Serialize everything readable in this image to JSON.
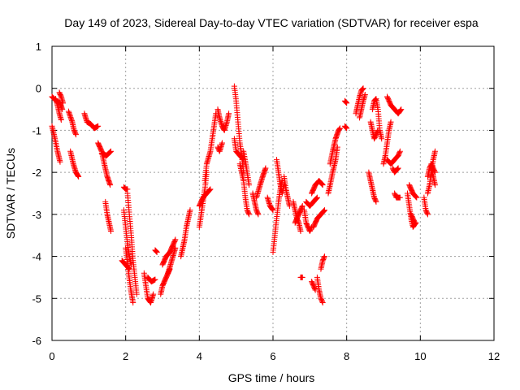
{
  "chart_data": {
    "type": "scatter",
    "title": "Day 149 of 2023, Sidereal Day-to-day VTEC variation (SDTVAR) for receiver espa",
    "xlabel": "GPS time / hours",
    "ylabel": "SDTVAR / TECUs",
    "xlim": [
      0,
      12
    ],
    "ylim": [
      -6,
      1
    ],
    "xticks": [
      0,
      2,
      4,
      6,
      8,
      10,
      12
    ],
    "yticks": [
      1,
      0,
      -1,
      -2,
      -3,
      -4,
      -5,
      -6
    ],
    "grid": true,
    "marker": "+",
    "color": "#ff0000",
    "segments": [
      [
        [
          0.0,
          -0.2
        ],
        [
          0.12,
          -0.3
        ],
        [
          0.22,
          -0.35
        ],
        [
          0.28,
          -0.5
        ]
      ],
      [
        [
          0.0,
          -0.9
        ],
        [
          0.08,
          -1.2
        ],
        [
          0.15,
          -1.5
        ],
        [
          0.22,
          -1.75
        ]
      ],
      [
        [
          0.1,
          -0.25
        ],
        [
          0.15,
          -0.4
        ],
        [
          0.2,
          -0.6
        ],
        [
          0.25,
          -0.75
        ]
      ],
      [
        [
          0.2,
          -0.1
        ],
        [
          0.25,
          -0.2
        ],
        [
          0.3,
          -0.35
        ]
      ],
      [
        [
          0.45,
          -0.55
        ],
        [
          0.55,
          -0.8
        ],
        [
          0.6,
          -1.0
        ],
        [
          0.65,
          -1.1
        ]
      ],
      [
        [
          0.5,
          -1.5
        ],
        [
          0.58,
          -1.8
        ],
        [
          0.65,
          -2.0
        ],
        [
          0.72,
          -2.1
        ]
      ],
      [
        [
          0.88,
          -0.6
        ],
        [
          0.95,
          -0.8
        ],
        [
          1.05,
          -0.85
        ],
        [
          1.15,
          -0.95
        ],
        [
          1.25,
          -0.9
        ]
      ],
      [
        [
          1.25,
          -1.3
        ],
        [
          1.35,
          -1.5
        ],
        [
          1.42,
          -1.8
        ],
        [
          1.5,
          -2.1
        ],
        [
          1.58,
          -2.3
        ]
      ],
      [
        [
          1.35,
          -1.55
        ],
        [
          1.48,
          -1.6
        ],
        [
          1.6,
          -1.5
        ]
      ],
      [
        [
          1.45,
          -2.7
        ],
        [
          1.5,
          -3.0
        ],
        [
          1.55,
          -3.2
        ],
        [
          1.6,
          -3.4
        ]
      ],
      [
        [
          1.95,
          -2.35
        ],
        [
          2.0,
          -2.4
        ],
        [
          2.05,
          -2.4
        ]
      ],
      [
        [
          1.95,
          -2.9
        ],
        [
          2.0,
          -3.3
        ],
        [
          2.05,
          -3.7
        ],
        [
          2.1,
          -4.0
        ],
        [
          2.15,
          -4.2
        ]
      ],
      [
        [
          2.05,
          -2.5
        ],
        [
          2.1,
          -3.0
        ],
        [
          2.15,
          -3.5
        ],
        [
          2.2,
          -4.1
        ],
        [
          2.25,
          -4.5
        ],
        [
          2.3,
          -4.9
        ]
      ],
      [
        [
          2.0,
          -3.8
        ],
        [
          2.08,
          -4.4
        ],
        [
          2.14,
          -4.8
        ],
        [
          2.2,
          -5.1
        ]
      ],
      [
        [
          1.9,
          -4.1
        ],
        [
          2.0,
          -4.2
        ],
        [
          2.1,
          -4.3
        ]
      ],
      [
        [
          2.5,
          -4.4
        ],
        [
          2.55,
          -4.7
        ],
        [
          2.6,
          -5.0
        ],
        [
          2.68,
          -5.1
        ],
        [
          2.75,
          -4.9
        ]
      ],
      [
        [
          2.6,
          -4.5
        ],
        [
          2.7,
          -4.6
        ],
        [
          2.8,
          -4.55
        ]
      ],
      [
        [
          2.8,
          -3.85
        ],
        [
          2.85,
          -3.9
        ]
      ],
      [
        [
          2.95,
          -4.9
        ],
        [
          3.0,
          -4.7
        ],
        [
          3.1,
          -4.5
        ],
        [
          3.2,
          -4.3
        ]
      ],
      [
        [
          3.0,
          -4.2
        ],
        [
          3.1,
          -4.0
        ],
        [
          3.2,
          -3.9
        ],
        [
          3.3,
          -3.7
        ],
        [
          3.35,
          -3.6
        ]
      ],
      [
        [
          3.15,
          -4.4
        ],
        [
          3.25,
          -4.1
        ],
        [
          3.35,
          -3.8
        ]
      ],
      [
        [
          3.5,
          -4.0
        ],
        [
          3.55,
          -3.8
        ],
        [
          3.6,
          -3.6
        ],
        [
          3.65,
          -3.3
        ],
        [
          3.7,
          -3.1
        ],
        [
          3.75,
          -2.9
        ]
      ],
      [
        [
          4.0,
          -3.3
        ],
        [
          4.05,
          -3.0
        ],
        [
          4.1,
          -2.7
        ],
        [
          4.15,
          -2.4
        ],
        [
          4.2,
          -2.0
        ]
      ],
      [
        [
          4.0,
          -2.8
        ],
        [
          4.1,
          -2.6
        ],
        [
          4.2,
          -2.5
        ],
        [
          4.3,
          -2.4
        ]
      ],
      [
        [
          4.15,
          -2.2
        ],
        [
          4.2,
          -1.8
        ],
        [
          4.3,
          -1.5
        ],
        [
          4.35,
          -1.2
        ],
        [
          4.4,
          -0.9
        ],
        [
          4.45,
          -0.6
        ]
      ],
      [
        [
          4.5,
          -1.4
        ],
        [
          4.55,
          -1.5
        ],
        [
          4.62,
          -1.3
        ]
      ],
      [
        [
          4.5,
          -0.5
        ],
        [
          4.55,
          -0.7
        ],
        [
          4.62,
          -0.9
        ],
        [
          4.68,
          -1.0
        ],
        [
          4.75,
          -0.8
        ],
        [
          4.8,
          -0.6
        ]
      ],
      [
        [
          4.95,
          0.05
        ],
        [
          5.0,
          -0.3
        ],
        [
          5.05,
          -0.8
        ],
        [
          5.1,
          -1.3
        ],
        [
          5.15,
          -1.6
        ],
        [
          5.2,
          -2.0
        ]
      ],
      [
        [
          4.95,
          -1.2
        ],
        [
          5.0,
          -1.5
        ],
        [
          5.1,
          -1.6
        ],
        [
          5.2,
          -1.7
        ]
      ],
      [
        [
          5.1,
          -1.8
        ],
        [
          5.2,
          -2.2
        ],
        [
          5.25,
          -2.6
        ],
        [
          5.3,
          -2.9
        ],
        [
          5.35,
          -3.0
        ]
      ],
      [
        [
          5.2,
          -1.5
        ],
        [
          5.28,
          -1.9
        ],
        [
          5.35,
          -2.3
        ]
      ],
      [
        [
          5.45,
          -2.5
        ],
        [
          5.5,
          -2.7
        ],
        [
          5.55,
          -2.9
        ],
        [
          5.6,
          -3.0
        ]
      ],
      [
        [
          5.55,
          -2.6
        ],
        [
          5.65,
          -2.3
        ],
        [
          5.72,
          -2.1
        ],
        [
          5.8,
          -1.9
        ]
      ],
      [
        [
          5.85,
          -2.6
        ],
        [
          5.92,
          -2.8
        ],
        [
          6.0,
          -2.9
        ]
      ],
      [
        [
          6.0,
          -3.9
        ],
        [
          6.05,
          -3.5
        ],
        [
          6.1,
          -3.1
        ],
        [
          6.15,
          -2.7
        ],
        [
          6.2,
          -2.4
        ],
        [
          6.25,
          -2.2
        ]
      ],
      [
        [
          6.1,
          -1.7
        ],
        [
          6.15,
          -2.0
        ],
        [
          6.2,
          -2.3
        ],
        [
          6.25,
          -2.5
        ],
        [
          6.3,
          -2.3
        ]
      ],
      [
        [
          6.3,
          -2.1
        ],
        [
          6.35,
          -2.4
        ],
        [
          6.4,
          -2.6
        ],
        [
          6.45,
          -2.8
        ]
      ],
      [
        [
          6.55,
          -2.7
        ],
        [
          6.6,
          -2.9
        ],
        [
          6.65,
          -3.1
        ],
        [
          6.7,
          -3.2
        ],
        [
          6.75,
          -3.4
        ]
      ],
      [
        [
          6.6,
          -3.2
        ],
        [
          6.7,
          -3.0
        ],
        [
          6.8,
          -2.8
        ]
      ],
      [
        [
          6.85,
          -2.9
        ],
        [
          6.9,
          -3.2
        ],
        [
          6.95,
          -3.3
        ],
        [
          7.0,
          -3.4
        ],
        [
          7.05,
          -3.3
        ]
      ],
      [
        [
          6.9,
          -2.7
        ],
        [
          7.0,
          -2.8
        ],
        [
          7.1,
          -2.7
        ],
        [
          7.2,
          -2.6
        ]
      ],
      [
        [
          7.05,
          -2.5
        ],
        [
          7.15,
          -2.3
        ],
        [
          7.25,
          -2.2
        ],
        [
          7.35,
          -2.3
        ]
      ],
      [
        [
          7.1,
          -3.3
        ],
        [
          7.2,
          -3.1
        ],
        [
          7.3,
          -3.0
        ],
        [
          7.4,
          -2.9
        ]
      ],
      [
        [
          7.5,
          -2.5
        ],
        [
          7.55,
          -2.3
        ],
        [
          7.62,
          -2.0
        ],
        [
          7.7,
          -1.7
        ],
        [
          7.75,
          -1.4
        ]
      ],
      [
        [
          7.55,
          -1.8
        ],
        [
          7.62,
          -1.5
        ],
        [
          7.7,
          -1.2
        ],
        [
          7.78,
          -1.0
        ],
        [
          7.82,
          -0.95
        ]
      ],
      [
        [
          6.75,
          -4.5
        ],
        [
          6.8,
          -4.5
        ]
      ],
      [
        [
          7.05,
          -4.6
        ],
        [
          7.1,
          -4.7
        ],
        [
          7.15,
          -4.8
        ]
      ],
      [
        [
          7.2,
          -4.5
        ],
        [
          7.25,
          -4.8
        ],
        [
          7.3,
          -5.0
        ],
        [
          7.35,
          -5.1
        ]
      ],
      [
        [
          7.3,
          -4.3
        ],
        [
          7.35,
          -4.1
        ],
        [
          7.4,
          -4.0
        ]
      ],
      [
        [
          7.95,
          -0.9
        ],
        [
          8.0,
          -0.95
        ]
      ],
      [
        [
          7.95,
          -0.3
        ],
        [
          8.0,
          -0.35
        ]
      ],
      [
        [
          8.25,
          -0.6
        ],
        [
          8.3,
          -0.4
        ],
        [
          8.35,
          -0.2
        ],
        [
          8.4,
          -0.05
        ],
        [
          8.45,
          0.0
        ]
      ],
      [
        [
          8.35,
          -0.7
        ],
        [
          8.4,
          -0.5
        ],
        [
          8.45,
          -0.3
        ],
        [
          8.5,
          -0.15
        ]
      ],
      [
        [
          8.6,
          -2.0
        ],
        [
          8.65,
          -2.2
        ],
        [
          8.7,
          -2.4
        ],
        [
          8.75,
          -2.6
        ],
        [
          8.8,
          -2.7
        ]
      ],
      [
        [
          8.65,
          -0.8
        ],
        [
          8.7,
          -1.0
        ],
        [
          8.75,
          -1.2
        ],
        [
          8.8,
          -1.1
        ],
        [
          8.85,
          -1.0
        ]
      ],
      [
        [
          8.7,
          -0.5
        ],
        [
          8.75,
          -0.3
        ],
        [
          8.8,
          -0.25
        ],
        [
          8.85,
          -0.5
        ],
        [
          8.9,
          -1.0
        ],
        [
          8.95,
          -1.2
        ]
      ],
      [
        [
          9.0,
          -1.8
        ],
        [
          9.05,
          -1.6
        ],
        [
          9.1,
          -1.3
        ],
        [
          9.15,
          -1.0
        ],
        [
          9.2,
          -0.8
        ]
      ],
      [
        [
          9.1,
          -1.7
        ],
        [
          9.2,
          -1.8
        ],
        [
          9.3,
          -1.7
        ],
        [
          9.4,
          -1.6
        ],
        [
          9.45,
          -1.5
        ]
      ],
      [
        [
          9.1,
          -0.2
        ],
        [
          9.15,
          -0.3
        ],
        [
          9.2,
          -0.4
        ],
        [
          9.3,
          -0.5
        ],
        [
          9.4,
          -0.6
        ],
        [
          9.48,
          -0.5
        ]
      ],
      [
        [
          9.25,
          -1.9
        ],
        [
          9.3,
          -2.0
        ],
        [
          9.4,
          -1.9
        ]
      ],
      [
        [
          9.3,
          -2.5
        ],
        [
          9.35,
          -2.6
        ],
        [
          9.45,
          -2.6
        ]
      ],
      [
        [
          9.65,
          -2.5
        ],
        [
          9.7,
          -2.8
        ],
        [
          9.75,
          -3.1
        ],
        [
          9.8,
          -3.3
        ],
        [
          9.88,
          -3.2
        ]
      ],
      [
        [
          9.7,
          -2.3
        ],
        [
          9.8,
          -2.5
        ],
        [
          9.9,
          -2.6
        ]
      ],
      [
        [
          9.75,
          -3.0
        ],
        [
          9.8,
          -3.1
        ],
        [
          9.85,
          -3.2
        ]
      ],
      [
        [
          10.1,
          -2.6
        ],
        [
          10.15,
          -2.9
        ],
        [
          10.2,
          -3.0
        ]
      ],
      [
        [
          10.2,
          -2.1
        ],
        [
          10.25,
          -1.9
        ],
        [
          10.3,
          -1.8
        ],
        [
          10.35,
          -1.9
        ],
        [
          10.4,
          -2.0
        ]
      ],
      [
        [
          10.2,
          -2.5
        ],
        [
          10.25,
          -2.3
        ],
        [
          10.3,
          -2.0
        ],
        [
          10.35,
          -1.7
        ],
        [
          10.4,
          -1.5
        ]
      ],
      [
        [
          10.3,
          -1.9
        ],
        [
          10.35,
          -2.1
        ],
        [
          10.4,
          -2.3
        ]
      ]
    ]
  }
}
